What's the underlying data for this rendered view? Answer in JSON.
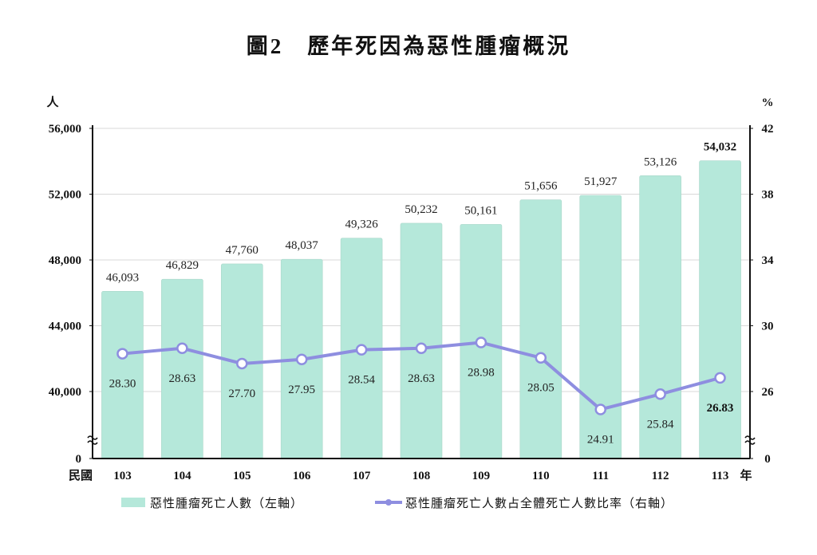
{
  "title": "圖2　歷年死因為惡性腫瘤概況",
  "chart_data": {
    "type": "bar+line",
    "title": "圖2　歷年死因為惡性腫瘤概況",
    "xlabel_prefix": "民國",
    "xlabel_suffix": "年",
    "categories": [
      "103",
      "104",
      "105",
      "106",
      "107",
      "108",
      "109",
      "110",
      "111",
      "112",
      "113"
    ],
    "left_axis": {
      "unit": "人",
      "ticks": [
        "0",
        "40,000",
        "44,000",
        "48,000",
        "52,000",
        "56,000"
      ],
      "range": [
        40000,
        56000
      ],
      "axis_break": true
    },
    "right_axis": {
      "unit": "%",
      "ticks": [
        "0",
        "26",
        "30",
        "34",
        "38",
        "42"
      ],
      "range": [
        26,
        42
      ],
      "axis_break": true
    },
    "grid": true,
    "legend_position": "bottom",
    "series": [
      {
        "name": "惡性腫瘤死亡人數（左軸）",
        "type": "bar",
        "axis": "left",
        "color": "#b5e8da",
        "values": [
          46093,
          46829,
          47760,
          48037,
          49326,
          50232,
          50161,
          51656,
          51927,
          53126,
          54032
        ],
        "labels": [
          "46,093",
          "46,829",
          "47,760",
          "48,037",
          "49,326",
          "50,232",
          "50,161",
          "51,656",
          "51,927",
          "53,126",
          "54,032"
        ]
      },
      {
        "name": "惡性腫瘤死亡人數占全體死亡人數比率（右軸）",
        "type": "line",
        "axis": "right",
        "color": "#8e8ee0",
        "values": [
          28.3,
          28.63,
          27.7,
          27.95,
          28.54,
          28.63,
          28.98,
          28.05,
          24.91,
          25.84,
          26.83
        ],
        "labels": [
          "28.30",
          "28.63",
          "27.70",
          "27.95",
          "28.54",
          "28.63",
          "28.98",
          "28.05",
          "24.91",
          "25.84",
          "26.83"
        ]
      }
    ]
  }
}
